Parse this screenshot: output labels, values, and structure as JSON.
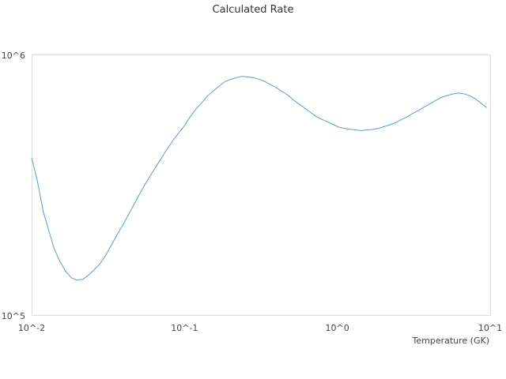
{
  "chart_data": {
    "type": "line",
    "title": "Calculated Rate",
    "xlabel": "Temperature (GK)",
    "ylabel": "",
    "x_scale": "log",
    "y_scale": "log",
    "xlim": [
      0.01,
      10
    ],
    "ylim": [
      100000,
      1000000
    ],
    "x_ticks": [
      {
        "value": 0.01,
        "label": "10^-2"
      },
      {
        "value": 0.1,
        "label": "10^-1"
      },
      {
        "value": 1,
        "label": "10^0"
      },
      {
        "value": 10,
        "label": "10^1"
      }
    ],
    "y_ticks": [
      {
        "value": 100000,
        "label": "10^5"
      },
      {
        "value": 1000000,
        "label": "10^6"
      }
    ],
    "grid": false,
    "legend": "none",
    "series": [
      {
        "color": "#5b9bd5",
        "x": [
          0.01,
          0.0109,
          0.0119,
          0.0129,
          0.0141,
          0.0153,
          0.0167,
          0.0182,
          0.0198,
          0.0216,
          0.0235,
          0.0256,
          0.0279,
          0.0304,
          0.0331,
          0.0361,
          0.0393,
          0.0428,
          0.0466,
          0.0508,
          0.0553,
          0.0603,
          0.0657,
          0.0716,
          0.078,
          0.085,
          0.0926,
          0.1008,
          0.1098,
          0.1196,
          0.1304,
          0.1421,
          0.1548,
          0.1686,
          0.1837,
          0.2001,
          0.218,
          0.2375,
          0.2588,
          0.2819,
          0.3071,
          0.3346,
          0.3646,
          0.3972,
          0.4327,
          0.4714,
          0.5136,
          0.5596,
          0.6097,
          0.6643,
          0.7237,
          0.7885,
          0.859,
          0.9359,
          1.0197,
          1.1109,
          1.2103,
          1.3186,
          1.4366,
          1.5652,
          1.7052,
          1.8578,
          2.0241,
          2.2052,
          2.4025,
          2.6175,
          2.8518,
          3.107,
          3.385,
          3.6879,
          4.018,
          4.3775,
          4.7692,
          5.196,
          5.661,
          6.1676,
          6.7195,
          7.3208,
          7.976,
          8.6897,
          9.4673
        ],
        "y": [
          405000,
          330000,
          252000,
          214000,
          180000,
          162000,
          148000,
          140000,
          137000,
          138000,
          143000,
          150000,
          158000,
          170000,
          186000,
          204000,
          222000,
          243000,
          267000,
          293000,
          320000,
          348000,
          377000,
          408000,
          442000,
          476000,
          507000,
          540000,
          585000,
          624000,
          660000,
          700000,
          730000,
          762000,
          792000,
          808000,
          820000,
          830000,
          827000,
          820000,
          810000,
          793000,
          772000,
          752000,
          728000,
          705000,
          676000,
          650000,
          628000,
          605000,
          583000,
          568000,
          556000,
          543000,
          530000,
          524000,
          520000,
          517000,
          514000,
          517000,
          519000,
          524000,
          532000,
          541000,
          551000,
          566000,
          580000,
          598000,
          614000,
          632000,
          650000,
          670000,
          688000,
          700000,
          710000,
          716000,
          712000,
          700000,
          682000,
          655000,
          630000
        ]
      }
    ]
  }
}
